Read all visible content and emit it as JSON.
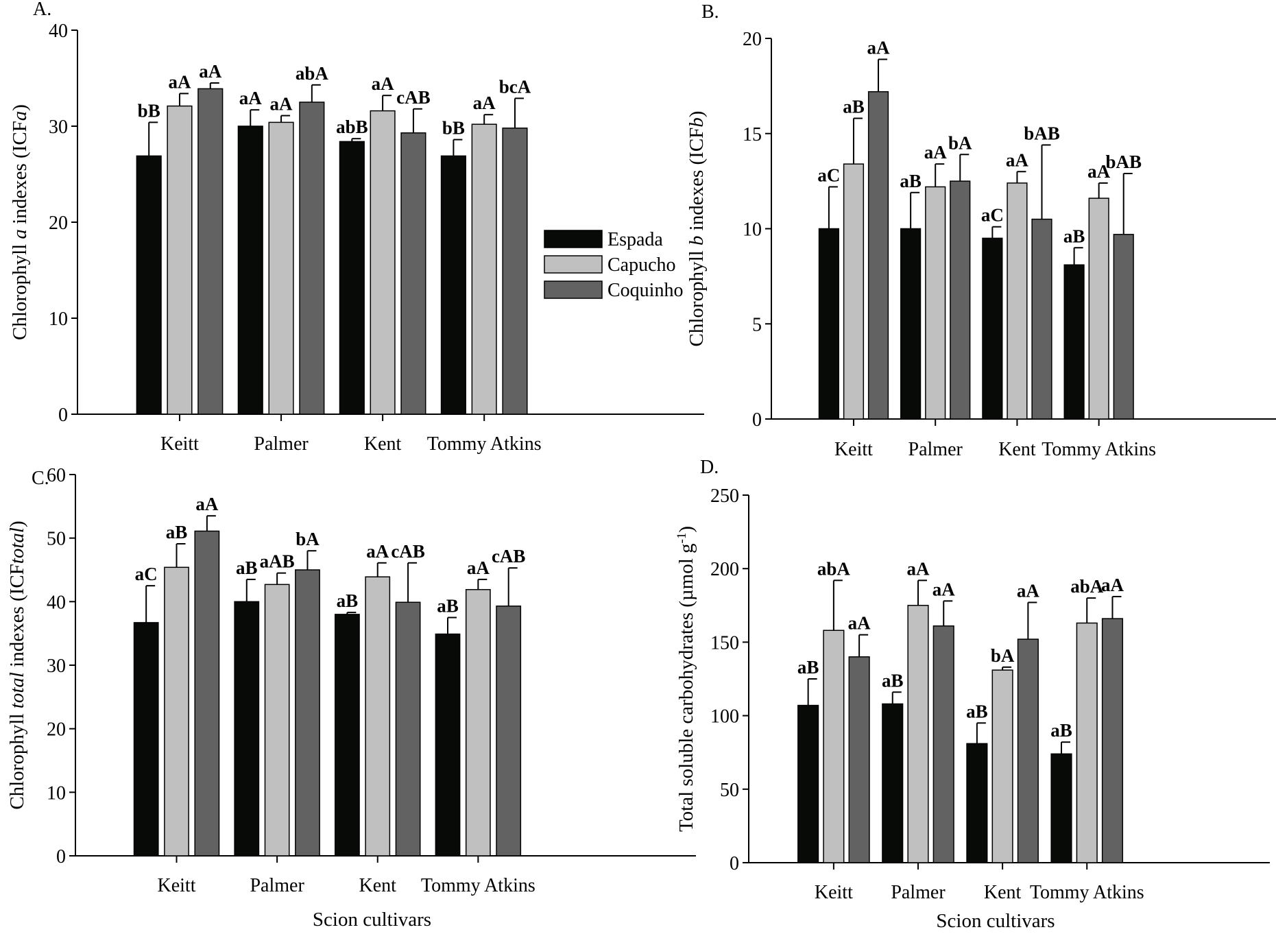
{
  "chart_data": [
    {
      "type": "bar",
      "panel": "A.",
      "categories": [
        "Keitt",
        "Palmer",
        "Kent",
        "Tommy Atkins"
      ],
      "ylabel_parts": [
        {
          "t": "Chlorophyll "
        },
        {
          "t": "a",
          "i": true
        },
        {
          "t": " indexes (ICF"
        },
        {
          "t": "a",
          "i": true
        },
        {
          "t": ")"
        }
      ],
      "xlabel": "",
      "ylim": [
        0,
        40
      ],
      "yticks": [
        0,
        10,
        20,
        30,
        40
      ],
      "series": [
        {
          "name": "Espada",
          "values": [
            26.9,
            30.0,
            28.4,
            26.9
          ],
          "err_top": [
            30.4,
            31.7,
            28.7,
            28.6
          ],
          "labels": [
            "bB",
            "aA",
            "abB",
            "bB"
          ]
        },
        {
          "name": "Capucho",
          "values": [
            32.1,
            30.4,
            31.6,
            30.2
          ],
          "err_top": [
            33.4,
            31.1,
            33.2,
            31.2
          ],
          "labels": [
            "aA",
            "aA",
            "aA",
            "aA"
          ]
        },
        {
          "name": "Coquinho",
          "values": [
            33.9,
            32.5,
            29.3,
            29.8
          ],
          "err_top": [
            34.5,
            34.3,
            31.8,
            32.9
          ],
          "labels": [
            "aA",
            "abA",
            "cAB",
            "bcA"
          ]
        }
      ],
      "legend": {
        "placement": "right",
        "entries": [
          "Espada",
          "Capucho",
          "Coquinho"
        ]
      }
    },
    {
      "type": "bar",
      "panel": "B.",
      "categories": [
        "Keitt",
        "Palmer",
        "Kent",
        "Tommy Atkins"
      ],
      "ylabel_parts": [
        {
          "t": "Chlorophyll "
        },
        {
          "t": "b",
          "i": true
        },
        {
          "t": " indexes (ICF"
        },
        {
          "t": "b",
          "i": true
        },
        {
          "t": ")"
        }
      ],
      "xlabel": "",
      "ylim": [
        0,
        20
      ],
      "yticks": [
        0,
        5,
        10,
        15,
        20
      ],
      "series": [
        {
          "name": "Espada",
          "values": [
            10.0,
            10.0,
            9.5,
            8.1
          ],
          "err_top": [
            12.2,
            11.9,
            10.1,
            9.0
          ],
          "labels": [
            "aC",
            "aB",
            "aC",
            "aB"
          ]
        },
        {
          "name": "Capucho",
          "values": [
            13.4,
            12.2,
            12.4,
            11.6
          ],
          "err_top": [
            15.8,
            13.4,
            13.0,
            12.4
          ],
          "labels": [
            "aB",
            "aA",
            "aA",
            "aA"
          ]
        },
        {
          "name": "Coquinho",
          "values": [
            17.2,
            12.5,
            10.5,
            9.7
          ],
          "err_top": [
            18.9,
            13.9,
            14.4,
            12.9
          ],
          "labels": [
            "aA",
            "bA",
            "bAB",
            "bAB"
          ]
        }
      ]
    },
    {
      "type": "bar",
      "panel": "C.",
      "categories": [
        "Keitt",
        "Palmer",
        "Kent",
        "Tommy Atkins"
      ],
      "ylabel_parts": [
        {
          "t": "Chlorophyll "
        },
        {
          "t": "total",
          "i": true
        },
        {
          "t": " indexes (ICF"
        },
        {
          "t": "total",
          "i": true
        },
        {
          "t": ")"
        }
      ],
      "xlabel": "Scion cultivars",
      "ylim": [
        0,
        60
      ],
      "yticks": [
        0,
        10,
        20,
        30,
        40,
        50,
        60
      ],
      "series": [
        {
          "name": "Espada",
          "values": [
            36.7,
            40.0,
            38.0,
            34.9
          ],
          "err_top": [
            42.5,
            43.5,
            38.3,
            37.5
          ],
          "labels": [
            "aC",
            "aB",
            "aB",
            "aB"
          ]
        },
        {
          "name": "Capucho",
          "values": [
            45.4,
            42.7,
            43.9,
            41.9
          ],
          "err_top": [
            49.1,
            44.5,
            46.1,
            43.5
          ],
          "labels": [
            "aB",
            "aAB",
            "aA",
            "aA"
          ]
        },
        {
          "name": "Coquinho",
          "values": [
            51.1,
            45.0,
            39.9,
            39.3
          ],
          "err_top": [
            53.5,
            48.0,
            46.1,
            45.3
          ],
          "labels": [
            "aA",
            "bA",
            "cAB",
            "cAB"
          ]
        }
      ]
    },
    {
      "type": "bar",
      "panel": "D.",
      "categories": [
        "Keitt",
        "Palmer",
        "Kent",
        "Tommy Atkins"
      ],
      "ylabel_parts": [
        {
          "t": "Total soluble carbohydrates  (µmol g"
        },
        {
          "t": "-1",
          "sup": true
        },
        {
          "t": ")"
        }
      ],
      "xlabel": "Scion cultivars",
      "ylim": [
        0,
        250
      ],
      "yticks": [
        0,
        50,
        100,
        150,
        200,
        250
      ],
      "series": [
        {
          "name": "Espada",
          "values": [
            107,
            108,
            81,
            74
          ],
          "err_top": [
            125,
            116,
            95,
            82
          ],
          "labels": [
            "aB",
            "aB",
            "aB",
            "aB"
          ]
        },
        {
          "name": "Capucho",
          "values": [
            158,
            175,
            131,
            163
          ],
          "err_top": [
            192,
            192,
            133,
            180
          ],
          "labels": [
            "abA",
            "aA",
            "bA",
            "abA"
          ]
        },
        {
          "name": "Coquinho",
          "values": [
            140,
            161,
            152,
            166
          ],
          "err_top": [
            155,
            178,
            177,
            181
          ],
          "labels": [
            "aA",
            "aA",
            "aA",
            "aA"
          ]
        }
      ]
    }
  ],
  "colors": {
    "Espada": "#080a08",
    "Capucho": "#c0c0c0",
    "Coquinho": "#626262"
  }
}
